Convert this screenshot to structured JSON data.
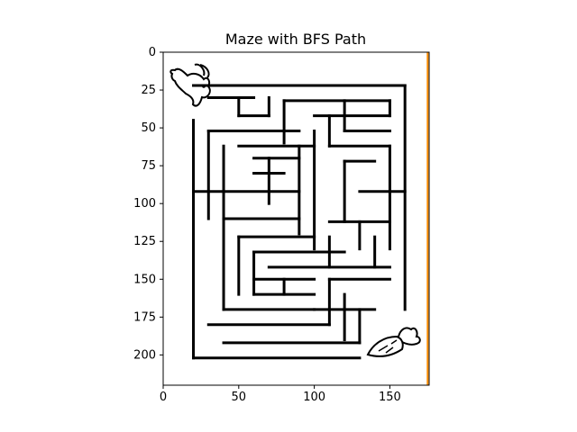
{
  "chart_data": {
    "type": "image",
    "title": "Maze with BFS Path",
    "xlabel": "",
    "ylabel": "",
    "xlim": [
      0,
      176
    ],
    "ylim": [
      220,
      0
    ],
    "x_ticks": [
      0,
      50,
      100,
      150
    ],
    "y_ticks": [
      0,
      25,
      50,
      75,
      100,
      125,
      150,
      175,
      200
    ],
    "x_tick_labels": [
      "0",
      "50",
      "100",
      "150"
    ],
    "y_tick_labels": [
      "0",
      "25",
      "50",
      "75",
      "100",
      "125",
      "150",
      "175",
      "200"
    ],
    "grid": false,
    "colors": {
      "maze_wall": "#000000",
      "path": "#ff8c00",
      "background": "#ffffff"
    },
    "maze": {
      "outer_bounds": {
        "x": [
          20,
          160
        ],
        "y": [
          22,
          202
        ]
      },
      "walls": [
        [
          20,
          22,
          160,
          22
        ],
        [
          160,
          22,
          160,
          170
        ],
        [
          20,
          45,
          20,
          202
        ],
        [
          20,
          202,
          130,
          202
        ],
        [
          30,
          30,
          60,
          30
        ],
        [
          50,
          30,
          50,
          42
        ],
        [
          50,
          42,
          70,
          42
        ],
        [
          70,
          30,
          70,
          42
        ],
        [
          80,
          32,
          80,
          60
        ],
        [
          80,
          32,
          150,
          32
        ],
        [
          100,
          42,
          150,
          42
        ],
        [
          110,
          42,
          110,
          62
        ],
        [
          120,
          32,
          120,
          52
        ],
        [
          150,
          32,
          150,
          42
        ],
        [
          130,
          52,
          150,
          52
        ],
        [
          120,
          52,
          150,
          52
        ],
        [
          30,
          52,
          90,
          52
        ],
        [
          30,
          52,
          30,
          110
        ],
        [
          40,
          62,
          40,
          170
        ],
        [
          50,
          62,
          100,
          62
        ],
        [
          100,
          52,
          100,
          130
        ],
        [
          60,
          70,
          90,
          70
        ],
        [
          60,
          80,
          80,
          80
        ],
        [
          70,
          70,
          70,
          100
        ],
        [
          20,
          92,
          90,
          92
        ],
        [
          90,
          62,
          90,
          120
        ],
        [
          40,
          110,
          90,
          110
        ],
        [
          110,
          62,
          150,
          62
        ],
        [
          120,
          72,
          140,
          72
        ],
        [
          120,
          72,
          120,
          112
        ],
        [
          130,
          92,
          160,
          92
        ],
        [
          110,
          112,
          150,
          112
        ],
        [
          150,
          62,
          150,
          130
        ],
        [
          50,
          122,
          100,
          122
        ],
        [
          50,
          122,
          50,
          160
        ],
        [
          60,
          132,
          60,
          160
        ],
        [
          60,
          132,
          120,
          132
        ],
        [
          110,
          122,
          110,
          142
        ],
        [
          130,
          112,
          130,
          130
        ],
        [
          140,
          122,
          140,
          142
        ],
        [
          70,
          142,
          150,
          142
        ],
        [
          60,
          150,
          100,
          150
        ],
        [
          60,
          160,
          100,
          160
        ],
        [
          80,
          150,
          80,
          160
        ],
        [
          110,
          150,
          150,
          150
        ],
        [
          110,
          150,
          110,
          180
        ],
        [
          100,
          170,
          140,
          170
        ],
        [
          40,
          170,
          100,
          170
        ],
        [
          30,
          180,
          110,
          180
        ],
        [
          120,
          160,
          120,
          190
        ],
        [
          40,
          192,
          130,
          192
        ],
        [
          130,
          170,
          130,
          192
        ]
      ],
      "path_points": [
        [
          175,
          0
        ],
        [
          175,
          220
        ]
      ],
      "start_marker": "rabbit",
      "end_marker": "carrot"
    }
  }
}
